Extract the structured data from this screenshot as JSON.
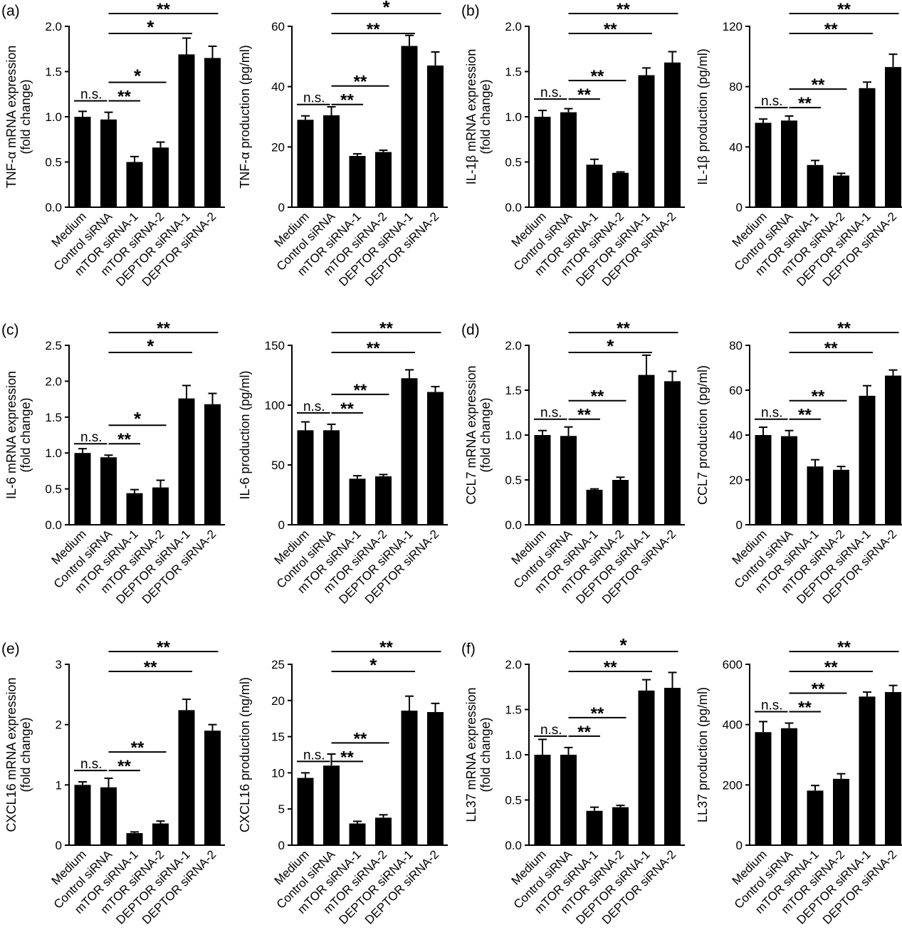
{
  "panel_labels": [
    "(a)",
    "(b)",
    "(c)",
    "(d)",
    "(e)",
    "(f)"
  ],
  "chart_data": [
    {
      "type": "bar",
      "panel": "(a)",
      "categories": [
        "Medium",
        "Control siRNA",
        "mTOR siRNA-1",
        "mTOR siRNA-2",
        "DEPTOR siRNA-1",
        "DEPTOR siRNA-2"
      ],
      "values": [
        1.0,
        0.97,
        0.5,
        0.66,
        1.69,
        1.65
      ],
      "errors": [
        0.06,
        0.08,
        0.06,
        0.06,
        0.18,
        0.13
      ],
      "ylabel": [
        "TNF-α  mRNA expression",
        "(fold change)"
      ],
      "ylim": [
        0,
        2.0
      ],
      "yticks": [
        "0.0",
        "0.5",
        "1.0",
        "1.5",
        "2.0"
      ],
      "significance": [
        {
          "from": 0,
          "to": 1,
          "label": "n.s."
        },
        {
          "from": 1,
          "to": 2,
          "label": "**"
        },
        {
          "from": 1,
          "to": 3,
          "label": "*"
        },
        {
          "from": 1,
          "to": 4,
          "label": "*"
        },
        {
          "from": 1,
          "to": 5,
          "label": "**"
        }
      ]
    },
    {
      "type": "bar",
      "panel": "",
      "categories": [
        "Medium",
        "Control siRNA",
        "mTOR siRNA-1",
        "mTOR siRNA-2",
        "DEPTOR siRNA-1",
        "DEPTOR siRNA-2"
      ],
      "values": [
        29,
        30.5,
        17,
        18.3,
        53.5,
        47
      ],
      "errors": [
        1.3,
        2.8,
        0.7,
        0.6,
        3.5,
        4.5
      ],
      "ylabel": [
        "TNF-α  production (pg/ml)"
      ],
      "ylim": [
        0,
        60
      ],
      "yticks": [
        "0",
        "20",
        "40",
        "60"
      ],
      "significance": [
        {
          "from": 0,
          "to": 1,
          "label": "n.s."
        },
        {
          "from": 1,
          "to": 2,
          "label": "**"
        },
        {
          "from": 1,
          "to": 3,
          "label": "**"
        },
        {
          "from": 1,
          "to": 4,
          "label": "**"
        },
        {
          "from": 1,
          "to": 5,
          "label": "*"
        }
      ]
    },
    {
      "type": "bar",
      "panel": "(b)",
      "categories": [
        "Medium",
        "Control siRNA",
        "mTOR siRNA-1",
        "mTOR siRNA-2",
        "DEPTOR siRNA-1",
        "DEPTOR siRNA-2"
      ],
      "values": [
        1.0,
        1.05,
        0.47,
        0.38,
        1.46,
        1.6
      ],
      "errors": [
        0.07,
        0.04,
        0.06,
        0.01,
        0.08,
        0.12
      ],
      "ylabel": [
        "IL-1β mRNA expression",
        "(fold change)"
      ],
      "ylim": [
        0,
        2.0
      ],
      "yticks": [
        "0.0",
        "0.5",
        "1.0",
        "1.5",
        "2.0"
      ],
      "significance": [
        {
          "from": 0,
          "to": 1,
          "label": "n.s."
        },
        {
          "from": 1,
          "to": 2,
          "label": "**"
        },
        {
          "from": 1,
          "to": 3,
          "label": "**"
        },
        {
          "from": 1,
          "to": 4,
          "label": "**"
        },
        {
          "from": 1,
          "to": 5,
          "label": "**"
        }
      ]
    },
    {
      "type": "bar",
      "panel": "",
      "categories": [
        "Medium",
        "Control siRNA",
        "mTOR siRNA-1",
        "mTOR siRNA-2",
        "DEPTOR siRNA-1",
        "DEPTOR siRNA-2"
      ],
      "values": [
        56,
        57.5,
        28,
        21,
        79,
        93
      ],
      "errors": [
        2.5,
        3,
        3,
        1.5,
        4,
        8.5
      ],
      "ylabel": [
        "IL-1β production (pg/ml)"
      ],
      "ylim": [
        0,
        120
      ],
      "yticks": [
        "0",
        "40",
        "80",
        "120"
      ],
      "significance": [
        {
          "from": 0,
          "to": 1,
          "label": "n.s."
        },
        {
          "from": 1,
          "to": 2,
          "label": "**"
        },
        {
          "from": 1,
          "to": 3,
          "label": "**"
        },
        {
          "from": 1,
          "to": 4,
          "label": "**"
        },
        {
          "from": 1,
          "to": 5,
          "label": "**"
        }
      ]
    },
    {
      "type": "bar",
      "panel": "(c)",
      "categories": [
        "Medium",
        "Control siRNA",
        "mTOR siRNA-1",
        "mTOR siRNA-2",
        "DEPTOR siRNA-1",
        "DEPTOR siRNA-2"
      ],
      "values": [
        1.0,
        0.94,
        0.44,
        0.52,
        1.76,
        1.68
      ],
      "errors": [
        0.06,
        0.03,
        0.05,
        0.1,
        0.18,
        0.15
      ],
      "ylabel": [
        "IL-6 mRNA expression",
        "(fold change)"
      ],
      "ylim": [
        0,
        2.5
      ],
      "yticks": [
        "0.0",
        "0.5",
        "1.0",
        "1.5",
        "2.0",
        "2.5"
      ],
      "significance": [
        {
          "from": 0,
          "to": 1,
          "label": "n.s."
        },
        {
          "from": 1,
          "to": 2,
          "label": "**"
        },
        {
          "from": 1,
          "to": 3,
          "label": "*"
        },
        {
          "from": 1,
          "to": 4,
          "label": "*"
        },
        {
          "from": 1,
          "to": 5,
          "label": "**"
        }
      ]
    },
    {
      "type": "bar",
      "panel": "",
      "categories": [
        "Medium",
        "Control siRNA",
        "mTOR siRNA-1",
        "mTOR siRNA-2",
        "DEPTOR siRNA-1",
        "DEPTOR siRNA-2"
      ],
      "values": [
        79,
        79,
        38.5,
        40.5,
        122.5,
        111
      ],
      "errors": [
        7,
        5,
        2.5,
        1.5,
        7,
        4.5
      ],
      "ylabel": [
        "IL-6 production (pg/ml)"
      ],
      "ylim": [
        0,
        150
      ],
      "yticks": [
        "0",
        "50",
        "100",
        "150"
      ],
      "significance": [
        {
          "from": 0,
          "to": 1,
          "label": "n.s."
        },
        {
          "from": 1,
          "to": 2,
          "label": "**"
        },
        {
          "from": 1,
          "to": 3,
          "label": "**"
        },
        {
          "from": 1,
          "to": 4,
          "label": "**"
        },
        {
          "from": 1,
          "to": 5,
          "label": "**"
        }
      ]
    },
    {
      "type": "bar",
      "panel": "(d)",
      "categories": [
        "Medium",
        "Control siRNA",
        "mTOR siRNA-1",
        "mTOR siRNA-2",
        "DEPTOR siRNA-1",
        "DEPTOR siRNA-2"
      ],
      "values": [
        1.0,
        0.99,
        0.39,
        0.5,
        1.67,
        1.6
      ],
      "errors": [
        0.05,
        0.1,
        0.01,
        0.03,
        0.22,
        0.11
      ],
      "ylabel": [
        "CCL7 mRNA expression",
        "(fold change)"
      ],
      "ylim": [
        0,
        2.0
      ],
      "yticks": [
        "0.0",
        "0.5",
        "1.0",
        "1.5",
        "2.0"
      ],
      "significance": [
        {
          "from": 0,
          "to": 1,
          "label": "n.s."
        },
        {
          "from": 1,
          "to": 2,
          "label": "**"
        },
        {
          "from": 1,
          "to": 3,
          "label": "**"
        },
        {
          "from": 1,
          "to": 4,
          "label": "*"
        },
        {
          "from": 1,
          "to": 5,
          "label": "**"
        }
      ]
    },
    {
      "type": "bar",
      "panel": "",
      "categories": [
        "Medium",
        "Control siRNA",
        "mTOR siRNA-1",
        "mTOR siRNA-2",
        "DEPTOR siRNA-1",
        "DEPTOR siRNA-2"
      ],
      "values": [
        40,
        39.5,
        26,
        24.5,
        57.5,
        66.5
      ],
      "errors": [
        3.5,
        2.5,
        3,
        1.5,
        4.5,
        2.5
      ],
      "ylabel": [
        "CCL7 production (pg/ml)"
      ],
      "ylim": [
        0,
        80
      ],
      "yticks": [
        "0",
        "20",
        "40",
        "60",
        "80"
      ],
      "significance": [
        {
          "from": 0,
          "to": 1,
          "label": "n.s."
        },
        {
          "from": 1,
          "to": 2,
          "label": "**"
        },
        {
          "from": 1,
          "to": 3,
          "label": "**"
        },
        {
          "from": 1,
          "to": 4,
          "label": "**"
        },
        {
          "from": 1,
          "to": 5,
          "label": "**"
        }
      ]
    },
    {
      "type": "bar",
      "panel": "(e)",
      "categories": [
        "Medium",
        "Control siRNA",
        "mTOR siRNA-1",
        "mTOR siRNA-2",
        "DEPTOR siRNA-1",
        "DEPTOR siRNA-2"
      ],
      "values": [
        1.0,
        0.96,
        0.2,
        0.36,
        2.24,
        1.9
      ],
      "errors": [
        0.05,
        0.15,
        0.02,
        0.04,
        0.18,
        0.1
      ],
      "ylabel": [
        "CXCL16 mRNA expression",
        "(fold change)"
      ],
      "ylim": [
        0,
        3
      ],
      "yticks": [
        "0",
        "1",
        "2",
        "3"
      ],
      "significance": [
        {
          "from": 0,
          "to": 1,
          "label": "n.s."
        },
        {
          "from": 1,
          "to": 2,
          "label": "**"
        },
        {
          "from": 1,
          "to": 3,
          "label": "**"
        },
        {
          "from": 1,
          "to": 4,
          "label": "**"
        },
        {
          "from": 1,
          "to": 5,
          "label": "**"
        }
      ]
    },
    {
      "type": "bar",
      "panel": "",
      "categories": [
        "Medium",
        "Control siRNA",
        "mTOR siRNA-1",
        "mTOR siRNA-2",
        "DEPTOR siRNA-1",
        "DEPTOR siRNA-2"
      ],
      "values": [
        9.3,
        11,
        3,
        3.8,
        18.6,
        18.4
      ],
      "errors": [
        0.7,
        1.6,
        0.3,
        0.4,
        2,
        1.2
      ],
      "ylabel": [
        "CXCL16 production (ng/ml)"
      ],
      "ylim": [
        0,
        25
      ],
      "yticks": [
        "0",
        "5",
        "10",
        "15",
        "20",
        "25"
      ],
      "significance": [
        {
          "from": 0,
          "to": 1,
          "label": "n.s."
        },
        {
          "from": 1,
          "to": 2,
          "label": "**"
        },
        {
          "from": 1,
          "to": 3,
          "label": "**"
        },
        {
          "from": 1,
          "to": 4,
          "label": "*"
        },
        {
          "from": 1,
          "to": 5,
          "label": "**"
        }
      ]
    },
    {
      "type": "bar",
      "panel": "(f)",
      "categories": [
        "Medium",
        "Control siRNA",
        "mTOR siRNA-1",
        "mTOR siRNA-2",
        "DEPTOR siRNA-1",
        "DEPTOR siRNA-2"
      ],
      "values": [
        1.0,
        1.0,
        0.38,
        0.42,
        1.71,
        1.74
      ],
      "errors": [
        0.17,
        0.08,
        0.04,
        0.02,
        0.12,
        0.17
      ],
      "ylabel": [
        "LL37 mRNA expression",
        "(fold change)"
      ],
      "ylim": [
        0,
        2.0
      ],
      "yticks": [
        "0.0",
        "0.5",
        "1.0",
        "1.5",
        "2.0"
      ],
      "significance": [
        {
          "from": 0,
          "to": 1,
          "label": "n.s."
        },
        {
          "from": 1,
          "to": 2,
          "label": "**"
        },
        {
          "from": 1,
          "to": 3,
          "label": "**"
        },
        {
          "from": 1,
          "to": 4,
          "label": "**"
        },
        {
          "from": 1,
          "to": 5,
          "label": "*"
        }
      ]
    },
    {
      "type": "bar",
      "panel": "",
      "categories": [
        "Medium",
        "Control siRNA",
        "mTOR siRNA-1",
        "mTOR siRNA-2",
        "DEPTOR siRNA-1",
        "DEPTOR siRNA-2"
      ],
      "values": [
        375,
        388,
        181,
        220,
        493,
        508
      ],
      "errors": [
        35,
        17,
        17,
        17,
        15,
        22
      ],
      "ylabel": [
        "LL37 production (pg/ml)"
      ],
      "ylim": [
        0,
        600
      ],
      "yticks": [
        "0",
        "200",
        "400",
        "600"
      ],
      "significance": [
        {
          "from": 0,
          "to": 1,
          "label": "n.s."
        },
        {
          "from": 1,
          "to": 2,
          "label": "**"
        },
        {
          "from": 1,
          "to": 3,
          "label": "**"
        },
        {
          "from": 1,
          "to": 4,
          "label": "**"
        },
        {
          "from": 1,
          "to": 5,
          "label": "**"
        }
      ]
    }
  ]
}
